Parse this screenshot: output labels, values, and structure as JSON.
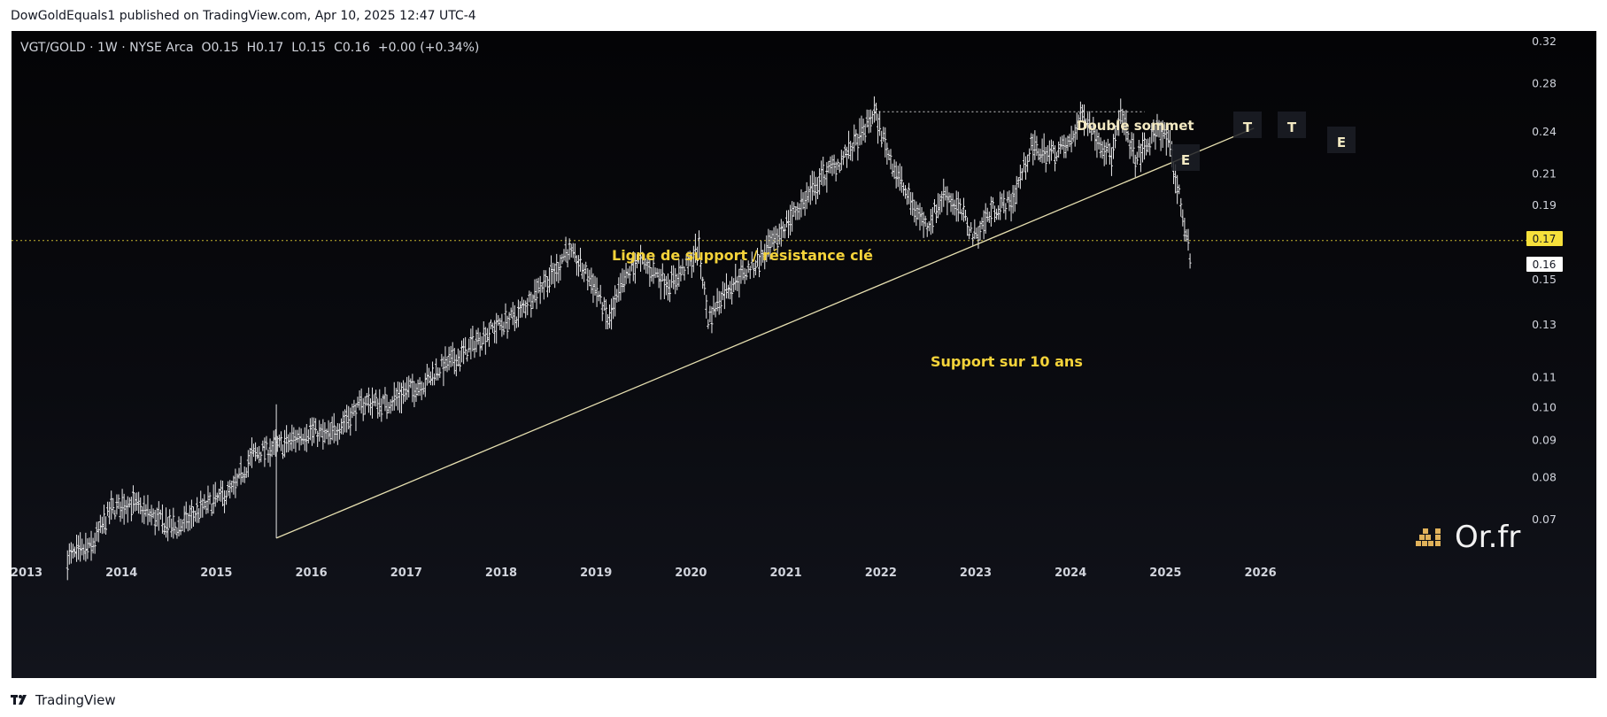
{
  "publisher_line": "DowGoldEquals1 published on TradingView.com, Apr 10, 2025 12:47 UTC-4",
  "symbol_line": "VGT/GOLD · 1W · NYSE Arca  O0.15  H0.17  L0.15  C0.16  +0.00 (+0.34%)",
  "footer_brand": "TradingView",
  "watermark": "Or.fr",
  "colors": {
    "candles": "#e8e8ea",
    "annotation_yellow": "#f5d33a",
    "annotation_cream": "#f3e9c2",
    "trendline": "#e6dfb0",
    "price_tag_yellow": "#f6e03b",
    "axis_text": "#d1d4dc"
  },
  "chart_data": {
    "type": "ohlc",
    "title": "VGT/GOLD",
    "interval": "1W",
    "exchange": "NYSE Arca",
    "y_scale": "log",
    "ylim": [
      0.06,
      0.33
    ],
    "xlim": [
      2013.0,
      2026.8
    ],
    "y_ticks": [
      "0.32",
      "0.28",
      "0.24",
      "0.21",
      "0.19",
      "0.15",
      "0.13",
      "0.11",
      "0.10",
      "0.09",
      "0.08",
      "0.07"
    ],
    "x_ticks": [
      "2013",
      "2014",
      "2015",
      "2016",
      "2017",
      "2018",
      "2019",
      "2020",
      "2021",
      "2022",
      "2023",
      "2024",
      "2025",
      "2026"
    ],
    "price_series_approx": [
      [
        2013.45,
        0.062
      ],
      [
        2013.7,
        0.064
      ],
      [
        2013.9,
        0.072
      ],
      [
        2014.1,
        0.074
      ],
      [
        2014.4,
        0.07
      ],
      [
        2014.6,
        0.068
      ],
      [
        2014.9,
        0.073
      ],
      [
        2015.2,
        0.077
      ],
      [
        2015.4,
        0.086
      ],
      [
        2015.5,
        0.087
      ],
      [
        2015.75,
        0.089
      ],
      [
        2016.0,
        0.093
      ],
      [
        2016.2,
        0.091
      ],
      [
        2016.4,
        0.097
      ],
      [
        2016.6,
        0.102
      ],
      [
        2016.8,
        0.101
      ],
      [
        2017.0,
        0.105
      ],
      [
        2017.2,
        0.108
      ],
      [
        2017.4,
        0.114
      ],
      [
        2017.6,
        0.118
      ],
      [
        2017.8,
        0.125
      ],
      [
        2018.0,
        0.13
      ],
      [
        2018.2,
        0.134
      ],
      [
        2018.4,
        0.146
      ],
      [
        2018.6,
        0.154
      ],
      [
        2018.7,
        0.165
      ],
      [
        2018.8,
        0.16
      ],
      [
        2019.0,
        0.148
      ],
      [
        2019.15,
        0.131
      ],
      [
        2019.3,
        0.148
      ],
      [
        2019.45,
        0.16
      ],
      [
        2019.6,
        0.155
      ],
      [
        2019.8,
        0.148
      ],
      [
        2020.0,
        0.158
      ],
      [
        2020.1,
        0.166
      ],
      [
        2020.2,
        0.132
      ],
      [
        2020.35,
        0.144
      ],
      [
        2020.5,
        0.15
      ],
      [
        2020.7,
        0.158
      ],
      [
        2020.9,
        0.169
      ],
      [
        2021.0,
        0.178
      ],
      [
        2021.2,
        0.192
      ],
      [
        2021.4,
        0.208
      ],
      [
        2021.6,
        0.219
      ],
      [
        2021.8,
        0.236
      ],
      [
        2021.95,
        0.256
      ],
      [
        2022.1,
        0.224
      ],
      [
        2022.3,
        0.195
      ],
      [
        2022.5,
        0.178
      ],
      [
        2022.7,
        0.198
      ],
      [
        2022.9,
        0.183
      ],
      [
        2023.0,
        0.172
      ],
      [
        2023.2,
        0.188
      ],
      [
        2023.4,
        0.192
      ],
      [
        2023.6,
        0.228
      ],
      [
        2023.8,
        0.224
      ],
      [
        2024.0,
        0.23
      ],
      [
        2024.15,
        0.256
      ],
      [
        2024.3,
        0.236
      ],
      [
        2024.45,
        0.222
      ],
      [
        2024.55,
        0.253
      ],
      [
        2024.7,
        0.22
      ],
      [
        2024.85,
        0.232
      ],
      [
        2024.95,
        0.245
      ],
      [
        2025.05,
        0.232
      ],
      [
        2025.15,
        0.2
      ],
      [
        2025.25,
        0.17
      ],
      [
        2025.28,
        0.158
      ]
    ],
    "last_price": "0.16",
    "level_price": "0.17",
    "annotations": [
      {
        "text": "Ligne de support / résistance clé",
        "style": "yellow"
      },
      {
        "text": "Support sur 10 ans",
        "style": "yellow"
      },
      {
        "text": "Double sommet",
        "style": "cream"
      },
      {
        "text": "E",
        "style": "cream"
      },
      {
        "text": "T",
        "style": "cream"
      },
      {
        "text": "T",
        "style": "cream"
      },
      {
        "text": "E",
        "style": "cream"
      }
    ],
    "horizontal_levels": [
      {
        "price": 0.17,
        "style": "dotted",
        "color": "#f6e03b"
      },
      {
        "price": 0.256,
        "style": "dotted",
        "color": "#c9c9c9",
        "from": 2021.95,
        "to": 2024.8
      }
    ],
    "trendline": {
      "from": [
        2015.65,
        0.066
      ],
      "to": [
        2025.95,
        0.243
      ]
    },
    "spike_2015": {
      "x": 2015.65,
      "from": 0.101,
      "to": 0.066
    }
  }
}
